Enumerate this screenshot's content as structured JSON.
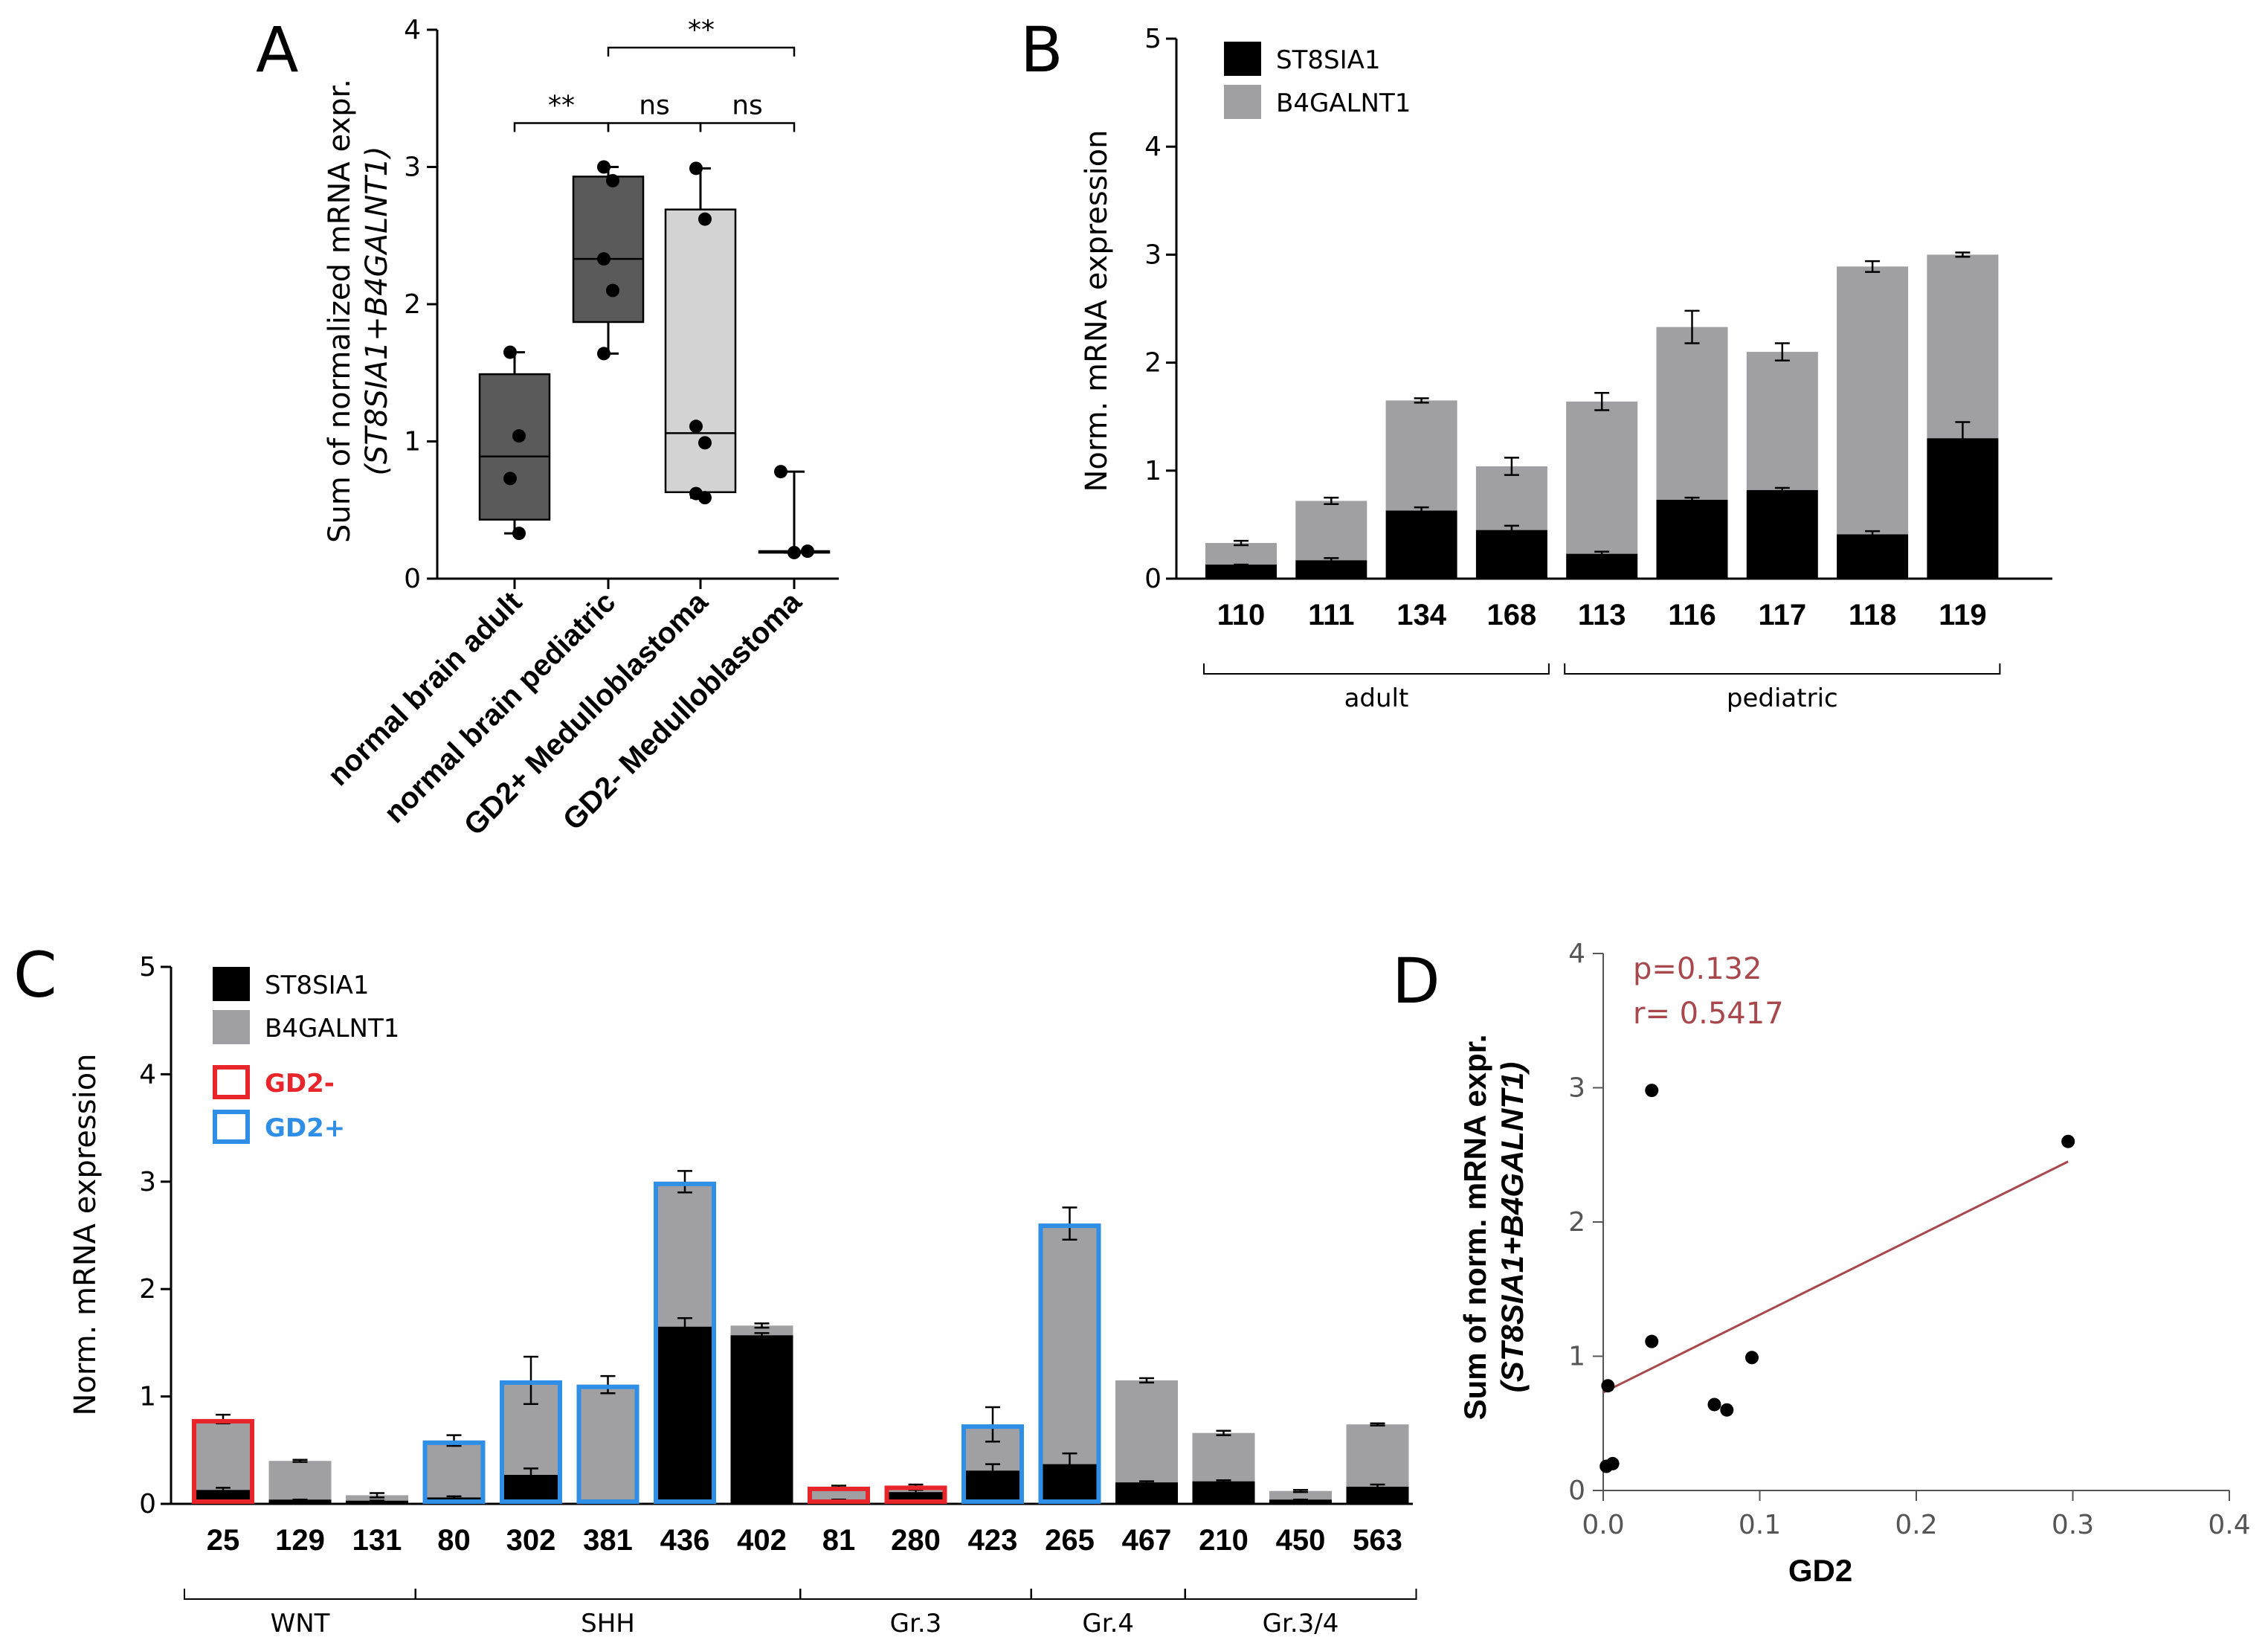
{
  "chart_data": [
    {
      "panel": "A",
      "type": "box",
      "ylabel_line1": "Sum of normalized mRNA expr.",
      "ylabel_line2": "(ST8SIA1+B4GALNT1)",
      "ylim": [
        0,
        4
      ],
      "yticks": [
        "0",
        "1",
        "2",
        "3",
        "4"
      ],
      "groups": [
        {
          "label": "normal brain adult",
          "color": "#5a5a5a",
          "min": 0.33,
          "q1": 0.43,
          "median": 0.89,
          "q3": 1.49,
          "max": 1.65,
          "points": [
            1.65,
            1.04,
            0.73,
            0.33
          ]
        },
        {
          "label": "normal brain pediatric",
          "color": "#5a5a5a",
          "min": 1.64,
          "q1": 1.87,
          "median": 2.33,
          "q3": 2.93,
          "max": 3.0,
          "points": [
            3.0,
            2.9,
            2.33,
            2.1,
            1.64
          ]
        },
        {
          "label": "GD2+ Medulloblastoma",
          "color": "#d3d3d3",
          "min": 0.59,
          "q1": 0.63,
          "median": 1.06,
          "q3": 2.69,
          "max": 2.99,
          "points": [
            2.99,
            2.62,
            1.11,
            0.99,
            0.62,
            0.59
          ]
        },
        {
          "label": "GD2- Medulloblastoma",
          "color": "#d3d3d3",
          "min": 0.19,
          "q1": 0.2,
          "median": 0.2,
          "q3": 0.2,
          "max": 0.78,
          "points": [
            0.78,
            0.19,
            0.2
          ]
        }
      ],
      "brackets": [
        {
          "from": 0,
          "to": 1,
          "level": 3.32,
          "label": "**"
        },
        {
          "from": 1,
          "to": 2,
          "level": 3.32,
          "label": "ns"
        },
        {
          "from": 2,
          "to": 3,
          "level": 3.32,
          "label": "ns"
        },
        {
          "from": 1,
          "to": 3,
          "level": 3.87,
          "label": "**"
        }
      ]
    },
    {
      "panel": "B",
      "type": "stacked-bar",
      "ylabel": "Norm. mRNA expression",
      "ylim": [
        0,
        5
      ],
      "yticks": [
        "0",
        "1",
        "2",
        "3",
        "4",
        "5"
      ],
      "categories": [
        "110",
        "111",
        "134",
        "168",
        "113",
        "116",
        "117",
        "118",
        "119"
      ],
      "series": [
        {
          "name": "ST8SIA1",
          "color": "#000000",
          "values": [
            0.13,
            0.17,
            0.63,
            0.45,
            0.23,
            0.73,
            0.82,
            0.41,
            1.3
          ],
          "err": [
            0.0,
            0.02,
            0.03,
            0.04,
            0.02,
            0.02,
            0.02,
            0.03,
            0.15
          ]
        },
        {
          "name": "B4GALNT1",
          "color": "#a0a0a3",
          "values": [
            0.2,
            0.55,
            1.02,
            0.59,
            1.41,
            1.6,
            1.28,
            2.48,
            1.7
          ],
          "err": [
            0.02,
            0.03,
            0.02,
            0.08,
            0.08,
            0.15,
            0.08,
            0.05,
            0.02
          ]
        }
      ],
      "groups": [
        {
          "label": "adult",
          "start": 0,
          "end": 3
        },
        {
          "label": "pediatric",
          "start": 4,
          "end": 8
        }
      ]
    },
    {
      "panel": "C",
      "type": "stacked-bar",
      "ylabel": "Norm. mRNA expression",
      "ylim": [
        0,
        5
      ],
      "yticks": [
        "0",
        "1",
        "2",
        "3",
        "4",
        "5"
      ],
      "categories": [
        "25",
        "129",
        "131",
        "80",
        "302",
        "381",
        "436",
        "402",
        "81",
        "280",
        "423",
        "265",
        "467",
        "210",
        "450",
        "563"
      ],
      "series": [
        {
          "name": "ST8SIA1",
          "color": "#000000",
          "values": [
            0.13,
            0.04,
            0.03,
            0.06,
            0.27,
            0.03,
            1.65,
            1.57,
            0.04,
            0.11,
            0.31,
            0.37,
            0.2,
            0.21,
            0.04,
            0.16
          ],
          "err": [
            0.02,
            0,
            0,
            0.01,
            0.06,
            0,
            0.08,
            0.02,
            0,
            0.02,
            0.06,
            0.1,
            0.01,
            0.01,
            0,
            0.02
          ]
        },
        {
          "name": "B4GALNT1",
          "color": "#a0a0a3",
          "values": [
            0.66,
            0.36,
            0.05,
            0.53,
            0.88,
            1.08,
            1.35,
            0.09,
            0.12,
            0.06,
            0.43,
            2.24,
            0.95,
            0.45,
            0.08,
            0.58
          ],
          "err": [
            0.04,
            0.01,
            0.02,
            0.05,
            0.22,
            0.08,
            0.1,
            0.02,
            0.01,
            0.01,
            0.16,
            0.15,
            0.02,
            0.02,
            0.01,
            0.01
          ]
        }
      ],
      "outline": [
        "GD2-",
        "none",
        "none",
        "GD2+",
        "GD2+",
        "GD2+",
        "GD2+",
        "none",
        "GD2-",
        "GD2-",
        "GD2+",
        "GD2+",
        "none",
        "none",
        "none",
        "none"
      ],
      "outline_legend": [
        {
          "name": "GD2-",
          "color": "#e8252a"
        },
        {
          "name": "GD2+",
          "color": "#2f8ee5"
        }
      ],
      "groups": [
        {
          "label": "WNT",
          "start": 0,
          "end": 2
        },
        {
          "label": "SHH",
          "start": 3,
          "end": 7
        },
        {
          "label": "Gr.3",
          "start": 8,
          "end": 10
        },
        {
          "label": "Gr.4",
          "start": 11,
          "end": 12
        },
        {
          "label": "Gr.3/4",
          "start": 13,
          "end": 15
        }
      ]
    },
    {
      "panel": "D",
      "type": "scatter",
      "xlabel": "GD2",
      "ylabel_line1": "Sum of norm. mRNA expr.",
      "ylabel_line2": "(ST8SIA1+B4GALNT1)",
      "xlim": [
        0,
        0.4
      ],
      "ylim": [
        0,
        4
      ],
      "xticks": [
        "0.0",
        "0.1",
        "0.2",
        "0.3",
        "0.4"
      ],
      "yticks": [
        "0",
        "1",
        "2",
        "3",
        "4"
      ],
      "points": [
        {
          "x": 0.002,
          "y": 0.18
        },
        {
          "x": 0.006,
          "y": 0.2
        },
        {
          "x": 0.003,
          "y": 0.78
        },
        {
          "x": 0.031,
          "y": 2.98
        },
        {
          "x": 0.031,
          "y": 1.11
        },
        {
          "x": 0.071,
          "y": 0.64
        },
        {
          "x": 0.079,
          "y": 0.6
        },
        {
          "x": 0.095,
          "y": 0.99
        },
        {
          "x": 0.297,
          "y": 2.6
        }
      ],
      "fit": {
        "x0": 0.0,
        "y0": 0.73,
        "x1": 0.297,
        "y1": 2.45,
        "color": "#a9484c"
      },
      "annotations": [
        "p=0.132",
        "r= 0.5417"
      ]
    }
  ],
  "panels": {
    "a": "A",
    "b": "B",
    "c": "C",
    "d": "D"
  }
}
